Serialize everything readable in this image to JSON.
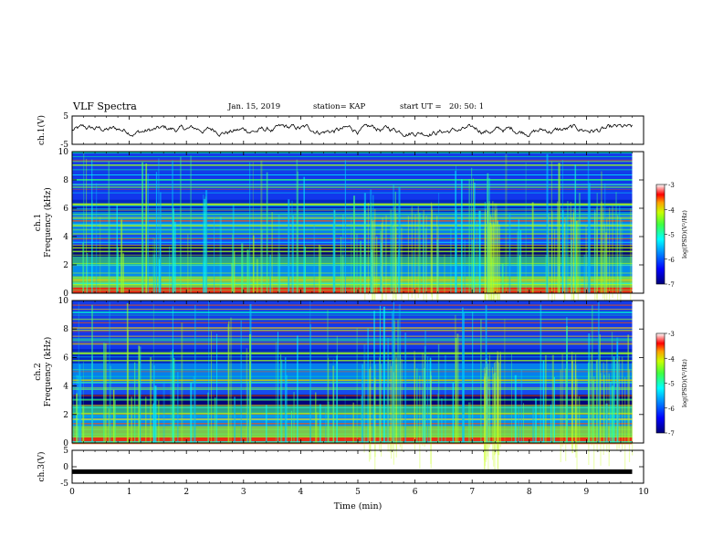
{
  "header": {
    "title": "VLF Spectra",
    "date": "Jan. 15, 2019",
    "station": "station= KAP",
    "start_label": "start UT =",
    "start_time": "20: 50: 1"
  },
  "colors": {
    "trace": "#000000",
    "colormap": [
      "#00007a",
      "#0000ff",
      "#0080ff",
      "#00ffff",
      "#00ff80",
      "#c8ff00",
      "#ffa000",
      "#ff0000",
      "#ffffff"
    ]
  },
  "chart_data": [
    {
      "type": "line",
      "panel": "ch1-waveform",
      "ylabel": "ch.1(V)",
      "ylim": [
        -5,
        5
      ],
      "yticks": [
        "5",
        "-5"
      ],
      "xlim": [
        0,
        10
      ],
      "series": [
        {
          "x_range": [
            0,
            9.8
          ],
          "values_note_range": [
            -2.2,
            2.0
          ]
        }
      ]
    },
    {
      "type": "heatmap",
      "panel": "ch1-spectrogram",
      "ylabel": "Frequency (kHz)",
      "channel_label": "ch.1",
      "ylim": [
        0,
        10
      ],
      "yticks": [
        "0",
        "2",
        "4",
        "6",
        "8",
        "10"
      ],
      "xlim": [
        0,
        10
      ],
      "data_x_end": 9.8,
      "colorbar": {
        "label": "log(PSD)(V²/Hz)",
        "range": [
          -7,
          -3
        ],
        "ticks": [
          "-3",
          "-4",
          "-5",
          "-6",
          "-7"
        ]
      }
    },
    {
      "type": "heatmap",
      "panel": "ch2-spectrogram",
      "ylabel": "Frequency (kHz)",
      "channel_label": "ch.2",
      "ylim": [
        0,
        10
      ],
      "yticks": [
        "0",
        "2",
        "4",
        "6",
        "8",
        "10"
      ],
      "xlim": [
        0,
        10
      ],
      "data_x_end": 9.8,
      "colorbar": {
        "label": "log(PSD)(V²/Hz)",
        "range": [
          -7,
          -3
        ],
        "ticks": [
          "-3",
          "-4",
          "-5",
          "-6",
          "-7"
        ]
      }
    },
    {
      "type": "line",
      "panel": "ch3-waveform",
      "ylabel": "ch.3(V)",
      "ylim": [
        -5,
        5
      ],
      "yticks": [
        "5",
        "0",
        "-5"
      ],
      "xlim": [
        0,
        10
      ],
      "series": [
        {
          "x_range": [
            0,
            9.8
          ],
          "constant_value": -1.5
        }
      ]
    }
  ],
  "xaxis": {
    "label": "Time (min)",
    "ticks": [
      "0",
      "1",
      "2",
      "3",
      "4",
      "5",
      "6",
      "7",
      "8",
      "9",
      "10"
    ]
  }
}
